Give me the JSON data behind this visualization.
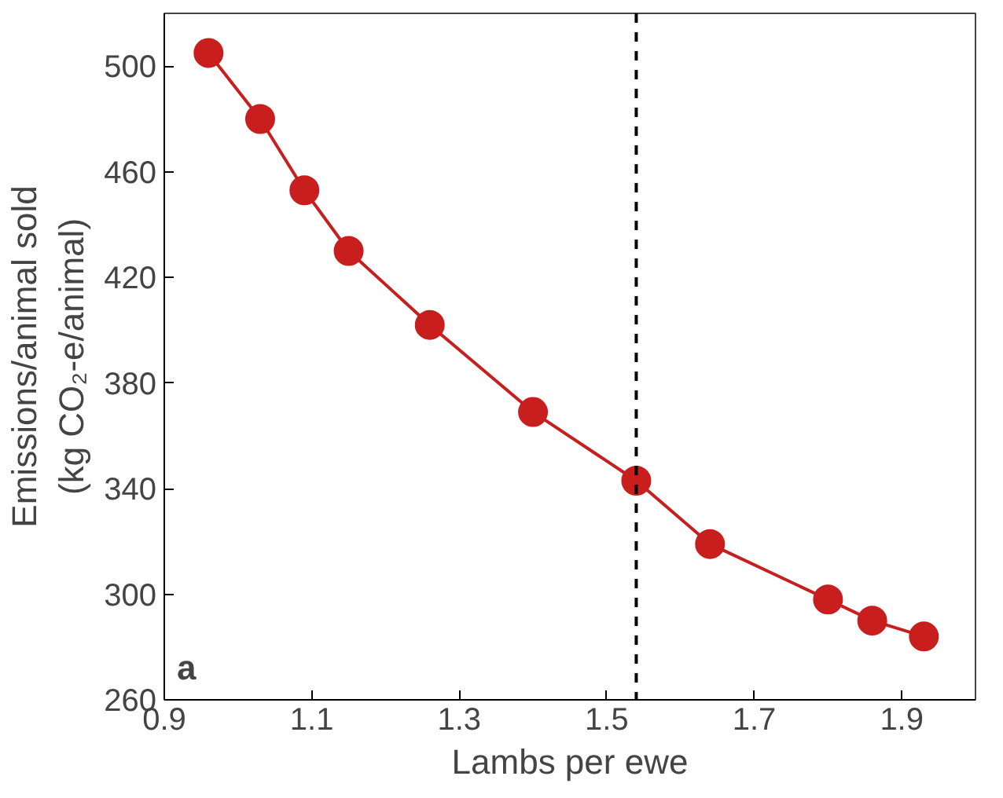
{
  "chart_data": {
    "type": "line",
    "xlabel": "Lambs per ewe",
    "ylabel": "Emissions/animal sold\n(kg CO₂-e/animal)",
    "annotations": [
      "a"
    ],
    "x": [
      0.96,
      1.03,
      1.09,
      1.15,
      1.26,
      1.4,
      1.54,
      1.64,
      1.8,
      1.86,
      1.93
    ],
    "series": [
      {
        "color": "#c81e1e",
        "values": [
          505,
          480,
          453,
          430,
          402,
          369,
          343,
          319,
          298,
          290,
          284
        ]
      }
    ],
    "marker": "circle",
    "line_style": "solid",
    "grid": false,
    "xlim": [
      0.9,
      2.0
    ],
    "xticks": [
      0.9,
      1.1,
      1.3,
      1.5,
      1.7,
      1.9
    ],
    "ylim": [
      260,
      520
    ],
    "yticks": [
      260,
      300,
      340,
      380,
      420,
      460,
      500
    ],
    "ref_lines": [
      {
        "axis": "x",
        "value": 1.54,
        "color": "#000000",
        "line_style": "dashed"
      }
    ]
  }
}
